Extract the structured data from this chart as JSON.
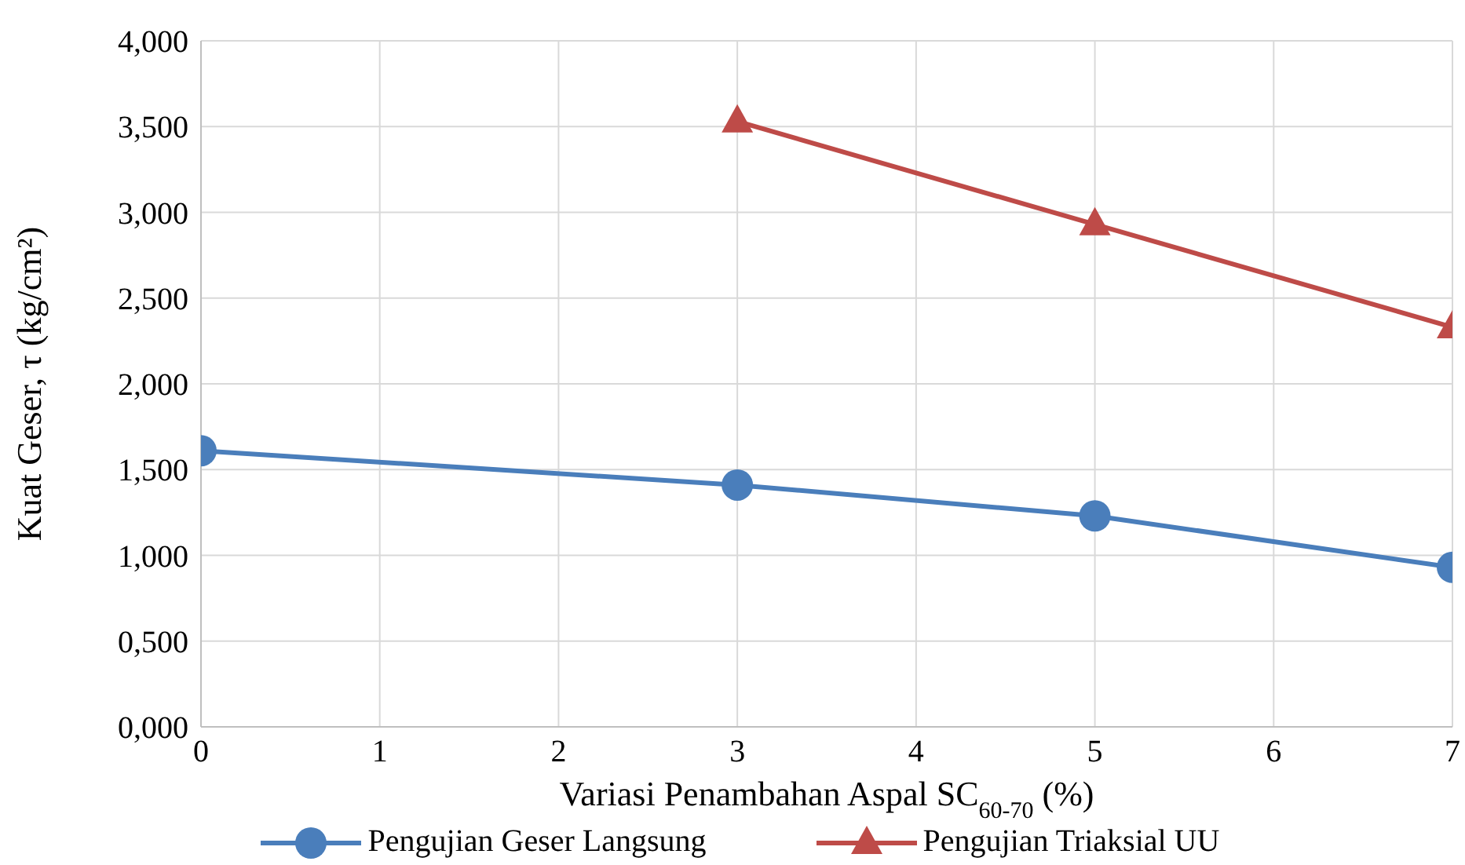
{
  "chart_data": {
    "type": "line",
    "xlabel": "Variasi Penambahan Aspal SC$_{60-70}$ (%)",
    "ylabel": "Kuat Geser, τ (kg/cm²)",
    "x": [
      0,
      3,
      5,
      7
    ],
    "series": [
      {
        "name": "Pengujian Geser Langsung",
        "color": "#4a7ebb",
        "marker": "circle",
        "values": [
          1.61,
          1.41,
          1.23,
          0.93
        ]
      },
      {
        "name": "Pengujian Triaksial UU",
        "color": "#be4b48",
        "marker": "triangle",
        "values": [
          null,
          3.53,
          2.93,
          2.33
        ]
      }
    ],
    "xlim": [
      0,
      7
    ],
    "xticks": [
      0,
      1,
      2,
      3,
      4,
      5,
      6,
      7
    ],
    "ylim": [
      0,
      4
    ],
    "yticks": [
      {
        "value": 0,
        "label": "0,000"
      },
      {
        "value": 0.5,
        "label": "0,500"
      },
      {
        "value": 1,
        "label": "1,000"
      },
      {
        "value": 1.5,
        "label": "1,500"
      },
      {
        "value": 2,
        "label": "2,000"
      },
      {
        "value": 2.5,
        "label": "2,500"
      },
      {
        "value": 3,
        "label": "3,000"
      },
      {
        "value": 3.5,
        "label": "3,500"
      },
      {
        "value": 4,
        "label": "4,000"
      }
    ],
    "grid": true,
    "legend": "bottom",
    "line_style": "solid"
  }
}
